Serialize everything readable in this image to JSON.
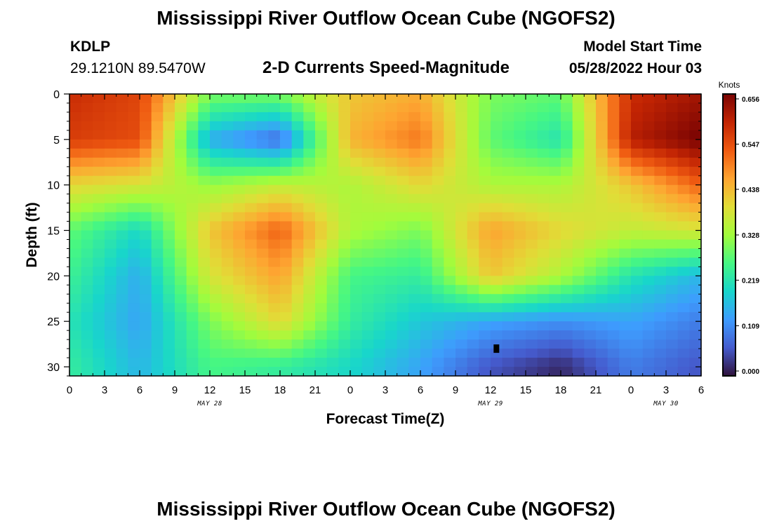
{
  "page": {
    "title_top": "Mississippi River Outflow Ocean Cube (NGOFS2)",
    "title_bottom": "Mississippi River Outflow Ocean Cube (NGOFS2)",
    "station_id": "KDLP",
    "station_coords": "29.1210N  89.5470W",
    "subtitle": "2-D Currents Speed-Magnitude",
    "model_start_label": "Model Start Time",
    "model_start_value": "05/28/2022 Hour 03"
  },
  "chart_data": {
    "type": "heatmap",
    "xlabel": "Forecast Time(Z)",
    "ylabel": "Depth (ft)",
    "x_tick_labels": [
      "0",
      "3",
      "6",
      "9",
      "12",
      "15",
      "18",
      "21",
      "0",
      "3",
      "6",
      "9",
      "12",
      "15",
      "18",
      "21",
      "0",
      "3",
      "6"
    ],
    "x_date_labels": [
      {
        "label": "MAY 28",
        "hour_index": 12
      },
      {
        "label": "MAY 29",
        "hour_index": 36
      },
      {
        "label": "MAY 30",
        "hour_index": 51
      }
    ],
    "xlim_hours": [
      0,
      54
    ],
    "ylim_ft": [
      31,
      0
    ],
    "y_ticks": [
      0,
      5,
      10,
      15,
      20,
      25,
      30
    ],
    "colorbar": {
      "label": "Knots",
      "tick_labels": [
        "0.000",
        "0.109",
        "0.219",
        "0.328",
        "0.438",
        "0.547",
        "0.656"
      ],
      "range": [
        0.0,
        0.656
      ],
      "colormap": "turbo"
    },
    "depth_levels_ft": [
      0,
      5,
      10,
      15,
      20,
      25,
      30
    ],
    "time_hours": [
      0,
      6,
      12,
      18,
      24,
      30,
      36,
      42,
      48,
      54
    ],
    "speed_knots": [
      [
        0.58,
        0.55,
        0.3,
        0.3,
        0.42,
        0.45,
        0.3,
        0.28,
        0.58,
        0.62
      ],
      [
        0.56,
        0.54,
        0.15,
        0.08,
        0.44,
        0.5,
        0.28,
        0.22,
        0.6,
        0.66
      ],
      [
        0.4,
        0.38,
        0.32,
        0.36,
        0.34,
        0.4,
        0.34,
        0.34,
        0.42,
        0.52
      ],
      [
        0.28,
        0.2,
        0.42,
        0.52,
        0.34,
        0.3,
        0.46,
        0.4,
        0.36,
        0.38
      ],
      [
        0.25,
        0.15,
        0.38,
        0.46,
        0.26,
        0.24,
        0.42,
        0.34,
        0.22,
        0.16
      ],
      [
        0.22,
        0.14,
        0.3,
        0.4,
        0.24,
        0.18,
        0.14,
        0.12,
        0.14,
        0.1
      ],
      [
        0.24,
        0.16,
        0.26,
        0.24,
        0.2,
        0.14,
        0.06,
        0.02,
        0.1,
        0.06
      ]
    ],
    "marker": {
      "hour": 36.5,
      "depth_ft": 28
    }
  }
}
